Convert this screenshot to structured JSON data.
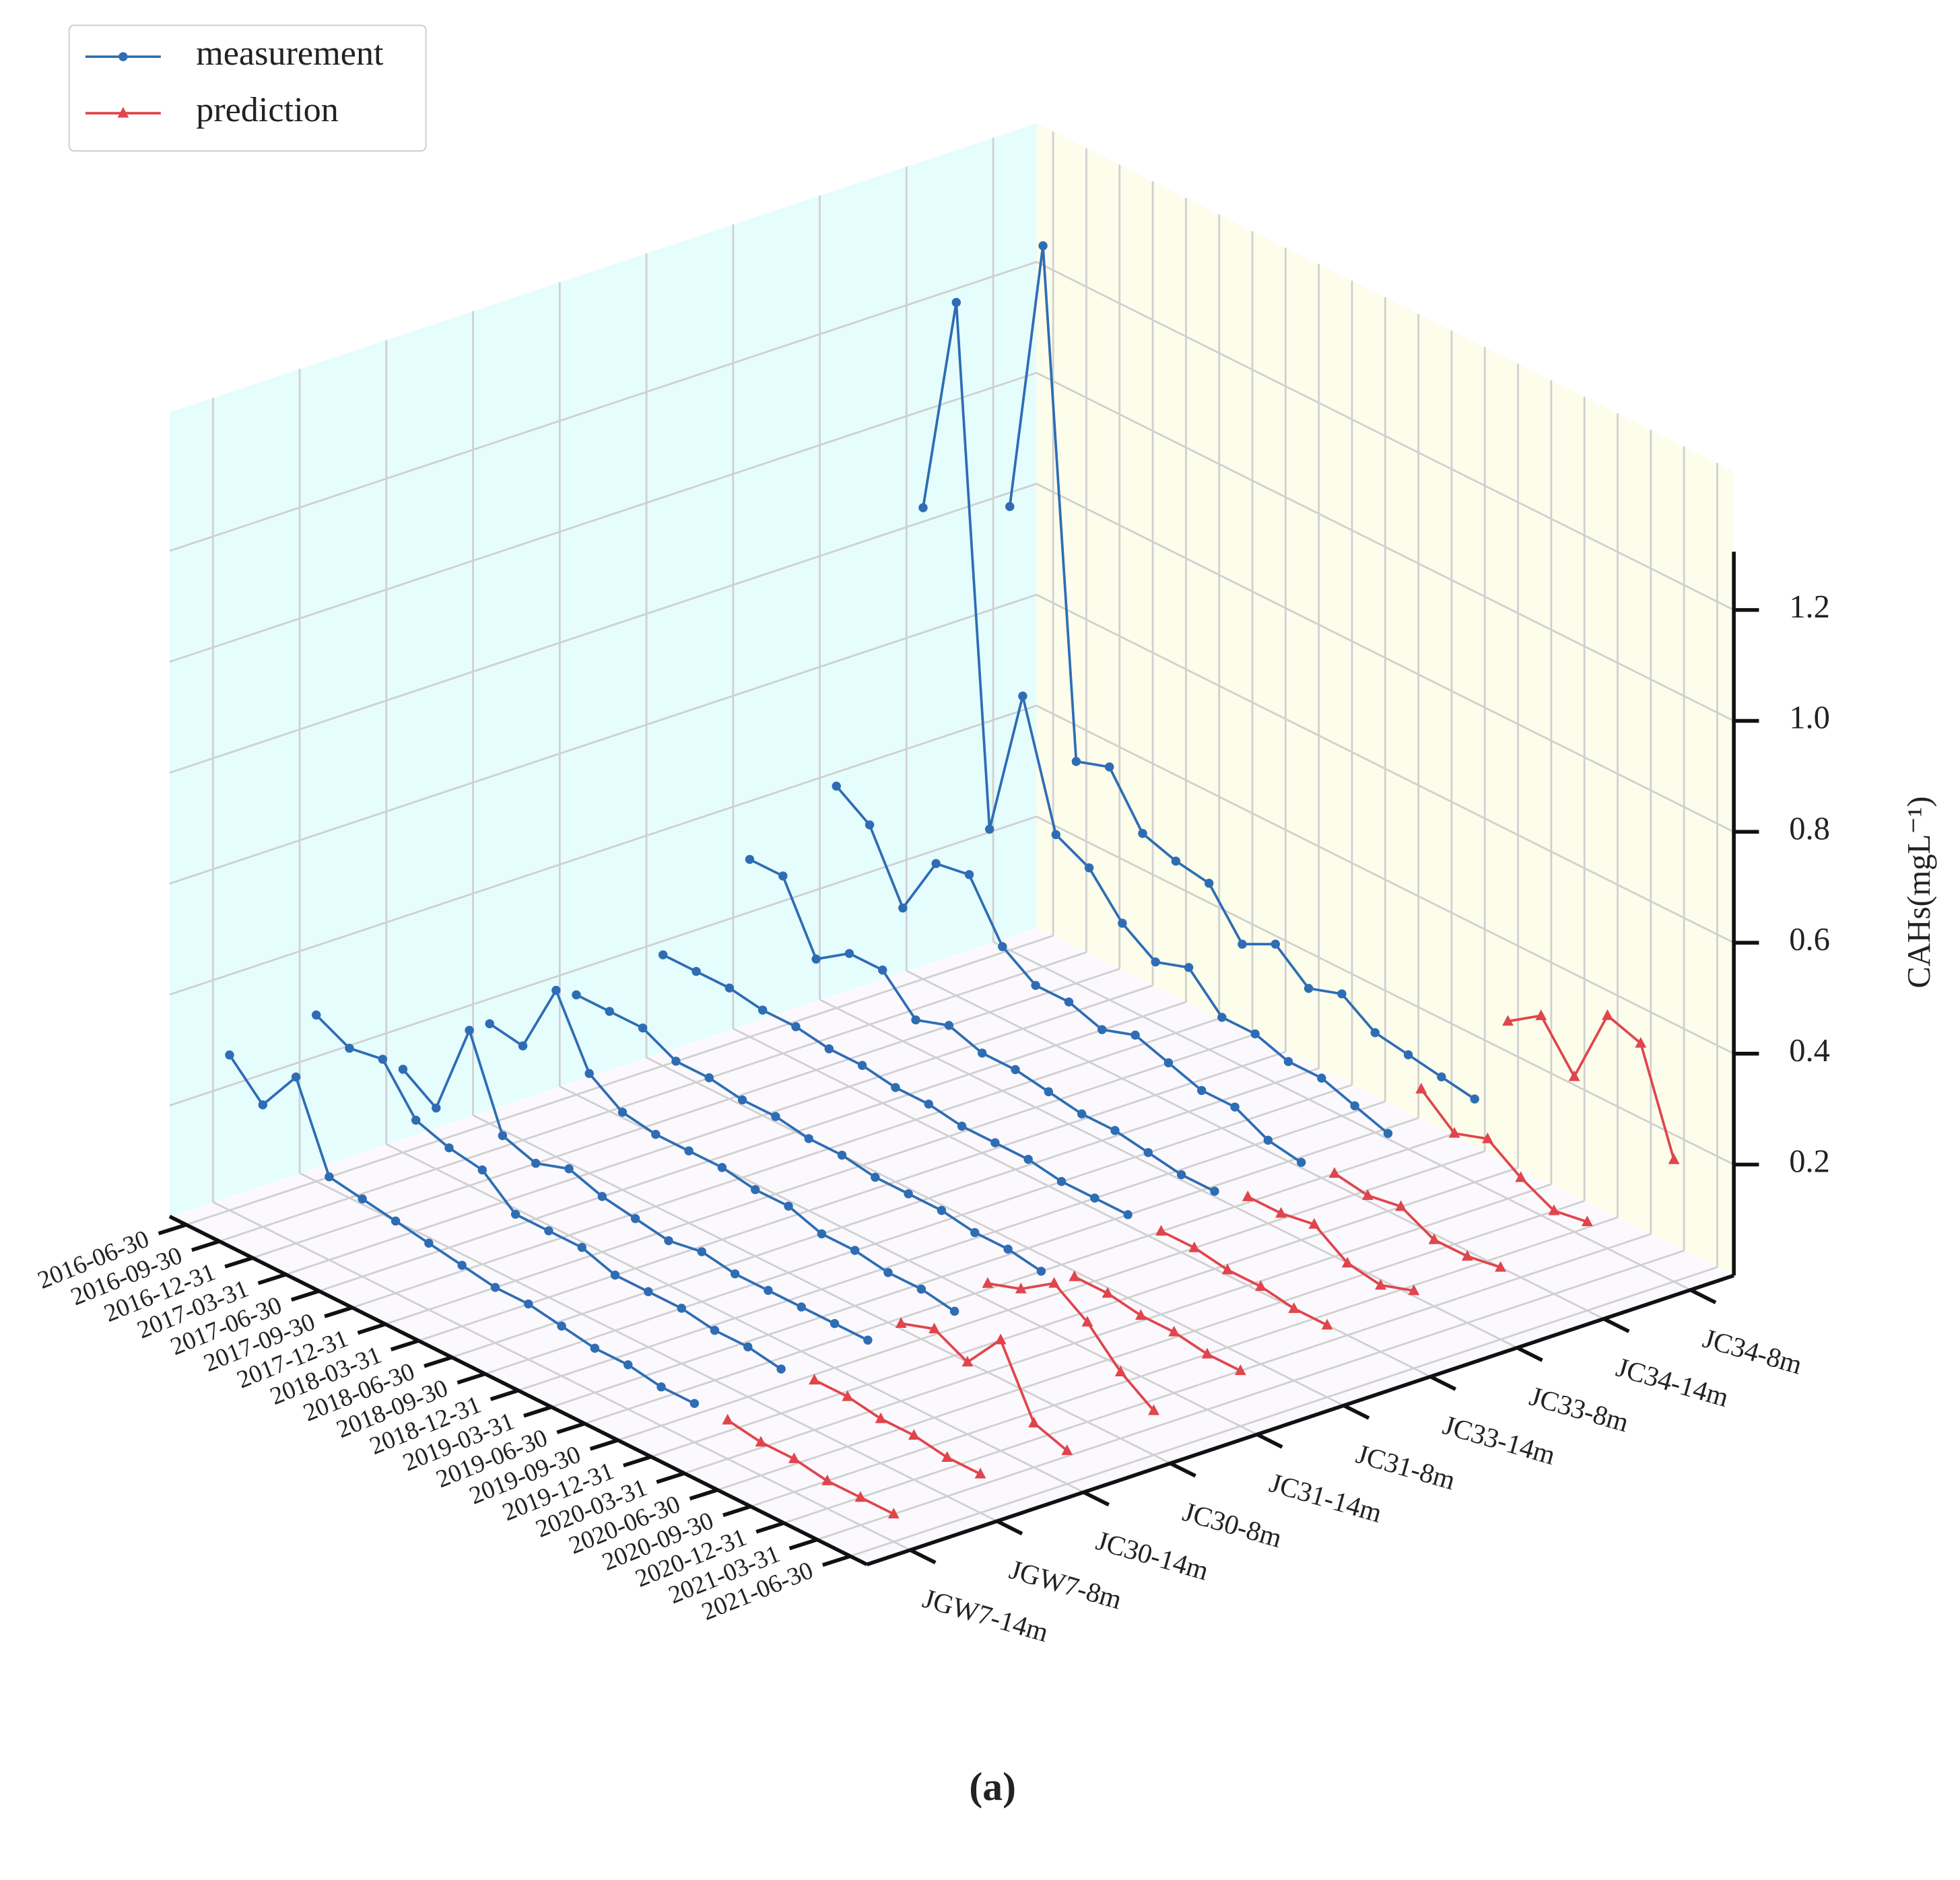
{
  "chart_data": {
    "type": "line3d",
    "x": [
      "2016-06-30",
      "2016-09-30",
      "2016-12-31",
      "2017-03-31",
      "2017-06-30",
      "2017-09-30",
      "2017-12-31",
      "2018-03-31",
      "2018-06-30",
      "2018-09-30",
      "2018-12-31",
      "2019-03-31",
      "2019-06-30",
      "2019-09-30",
      "2019-12-31",
      "2020-03-31",
      "2020-06-30",
      "2020-09-30",
      "2020-12-31",
      "2021-03-31",
      "2021-06-30"
    ],
    "wells": [
      "JGW7-14m",
      "JGW7-8m",
      "JC30-14m",
      "JC30-8m",
      "JC31-14m",
      "JC31-8m",
      "JC33-14m",
      "JC33-8m",
      "JC34-14m",
      "JC34-8m"
    ],
    "zlabel": "CAHs(mgL⁻¹)",
    "zlim": [
      0,
      1.45
    ],
    "zticks": [
      {
        "value": 0.2,
        "label": "0.2"
      },
      {
        "value": 0.4,
        "label": "0.4"
      },
      {
        "value": 0.6,
        "label": "0.6"
      },
      {
        "value": 0.8,
        "label": "0.8"
      },
      {
        "value": 1.0,
        "label": "1.0"
      },
      {
        "value": 1.2,
        "label": "1.2"
      }
    ],
    "grid": true,
    "legend": "upper left",
    "caption": "(a)",
    "series": [
      {
        "name": "measurement",
        "color": "#2e6db4",
        "marker": "circle",
        "values": [
          [
            0.28,
            0.22,
            0.3,
            0.15,
            0.14,
            0.13,
            0.12,
            0.11,
            0.1,
            0.1,
            0.09,
            0.08,
            0.08,
            0.07,
            0.07,
            null,
            null,
            null,
            null,
            null,
            null
          ],
          [
            0.3,
            0.27,
            0.28,
            0.2,
            0.18,
            0.17,
            0.12,
            0.12,
            0.12,
            0.1,
            0.1,
            0.1,
            0.09,
            0.09,
            0.08,
            null,
            null,
            null,
            null,
            null,
            null
          ],
          [
            0.15,
            0.11,
            0.28,
            0.12,
            0.1,
            0.12,
            0.1,
            0.09,
            0.08,
            0.09,
            0.08,
            0.08,
            0.08,
            0.08,
            0.08,
            null,
            null,
            null,
            null,
            null,
            null
          ],
          [
            0.18,
            0.17,
            0.3,
            0.18,
            0.14,
            0.13,
            0.13,
            0.13,
            0.12,
            0.12,
            0.1,
            0.1,
            0.09,
            0.09,
            0.08,
            null,
            null,
            null,
            null,
            null,
            null
          ],
          [
            0.18,
            0.18,
            0.18,
            0.15,
            0.15,
            0.14,
            0.14,
            0.13,
            0.13,
            0.12,
            0.12,
            0.12,
            0.11,
            0.11,
            0.1,
            null,
            null,
            null,
            null,
            null,
            null
          ],
          [
            0.2,
            0.2,
            0.2,
            0.19,
            0.19,
            0.18,
            0.18,
            0.17,
            0.17,
            0.16,
            0.16,
            0.16,
            0.15,
            0.15,
            0.15,
            null,
            null,
            null,
            null,
            null,
            null
          ],
          [
            0.32,
            0.32,
            0.2,
            0.24,
            0.24,
            0.18,
            0.2,
            0.18,
            0.18,
            0.17,
            0.16,
            0.16,
            0.15,
            0.14,
            0.14,
            null,
            null,
            null,
            null,
            null,
            null
          ],
          [
            0.4,
            0.36,
            0.24,
            0.35,
            0.36,
            0.26,
            0.22,
            0.22,
            0.2,
            0.22,
            0.2,
            0.18,
            0.18,
            0.15,
            0.14,
            null,
            null,
            null,
            null,
            null,
            null
          ],
          [
            0.85,
            1.25,
            0.33,
            0.6,
            0.38,
            0.35,
            0.28,
            0.24,
            0.26,
            0.2,
            0.2,
            0.18,
            0.18,
            0.16,
            0.14,
            null,
            null,
            null,
            null,
            null,
            null
          ],
          [
            0.8,
            1.3,
            0.4,
            0.42,
            0.33,
            0.31,
            0.3,
            0.22,
            0.25,
            0.2,
            0.22,
            0.18,
            0.17,
            0.16,
            0.15,
            null,
            null,
            null,
            null,
            null,
            null
          ]
        ]
      },
      {
        "name": "prediction",
        "color": "#e0454c",
        "marker": "triangle",
        "values": [
          [
            null,
            null,
            null,
            null,
            null,
            null,
            null,
            null,
            null,
            null,
            null,
            null,
            null,
            null,
            null,
            0.07,
            0.06,
            0.06,
            0.05,
            0.05,
            0.05
          ],
          [
            null,
            null,
            null,
            null,
            null,
            null,
            null,
            null,
            null,
            null,
            null,
            null,
            null,
            null,
            null,
            0.09,
            0.09,
            0.08,
            0.08,
            0.07,
            0.07
          ],
          [
            null,
            null,
            null,
            null,
            null,
            null,
            null,
            null,
            null,
            null,
            null,
            null,
            null,
            null,
            null,
            0.14,
            0.16,
            0.13,
            0.2,
            0.08,
            0.06
          ],
          [
            null,
            null,
            null,
            null,
            null,
            null,
            null,
            null,
            null,
            null,
            null,
            null,
            null,
            null,
            null,
            0.16,
            0.18,
            0.22,
            0.18,
            0.12,
            0.08
          ],
          [
            null,
            null,
            null,
            null,
            null,
            null,
            null,
            null,
            null,
            null,
            null,
            null,
            null,
            null,
            null,
            0.12,
            0.12,
            0.11,
            0.11,
            0.1,
            0.1
          ],
          [
            null,
            null,
            null,
            null,
            null,
            null,
            null,
            null,
            null,
            null,
            null,
            null,
            null,
            null,
            null,
            0.15,
            0.15,
            0.14,
            0.14,
            0.13,
            0.13
          ],
          [
            null,
            null,
            null,
            null,
            null,
            null,
            null,
            null,
            null,
            null,
            null,
            null,
            null,
            null,
            null,
            0.16,
            0.16,
            0.17,
            0.13,
            0.12,
            0.14
          ],
          [
            null,
            null,
            null,
            null,
            null,
            null,
            null,
            null,
            null,
            null,
            null,
            null,
            null,
            null,
            null,
            0.15,
            0.14,
            0.15,
            0.12,
            0.12,
            0.13
          ],
          [
            null,
            null,
            null,
            null,
            null,
            null,
            null,
            null,
            null,
            null,
            null,
            null,
            null,
            null,
            null,
            0.25,
            0.2,
            0.22,
            0.18,
            0.15,
            0.16
          ],
          [
            null,
            null,
            null,
            null,
            null,
            null,
            null,
            null,
            null,
            null,
            null,
            null,
            null,
            null,
            null,
            0.32,
            0.36,
            0.28,
            0.42,
            0.4,
            0.22
          ]
        ]
      }
    ]
  }
}
